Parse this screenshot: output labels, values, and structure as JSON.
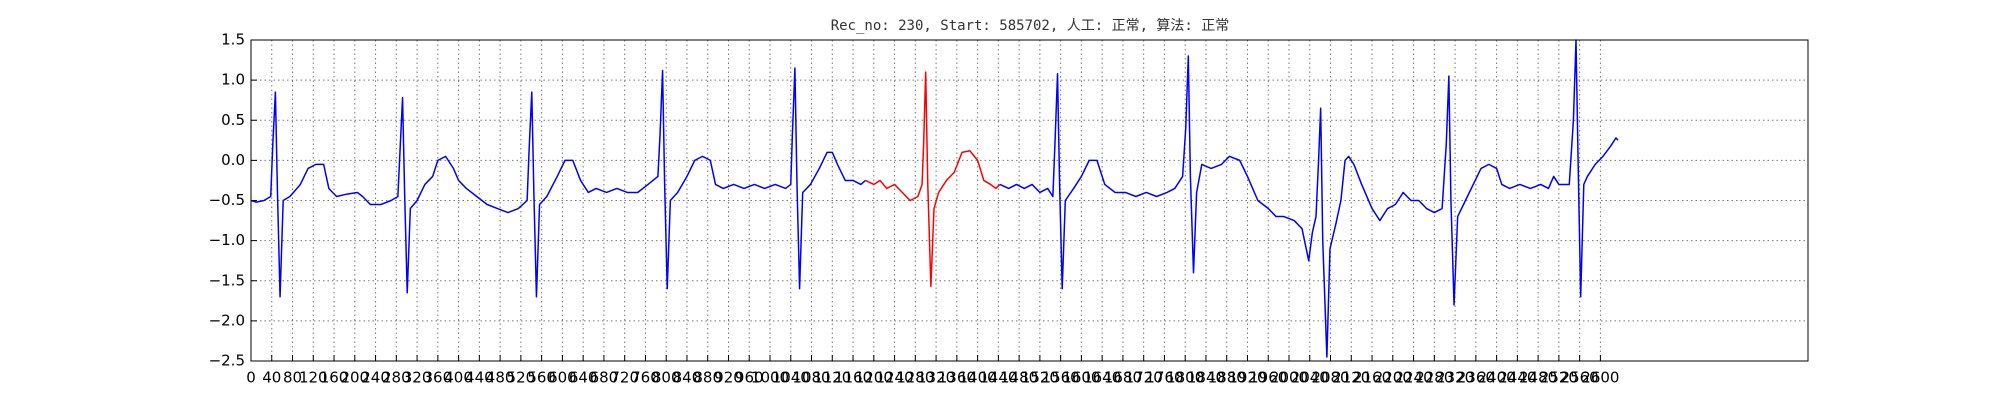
{
  "chart_data": {
    "type": "line",
    "title": "Rec_no: 230, Start: 585702, 人工: 正常, 算法: 正常",
    "xlim": [
      0,
      3000
    ],
    "xticks": [
      0,
      40,
      80,
      120,
      160,
      200,
      240,
      280,
      320,
      360,
      400,
      440,
      480,
      520,
      560,
      600,
      640,
      680,
      720,
      760,
      800,
      840,
      880,
      920,
      960,
      1000,
      1040,
      1080,
      1120,
      1160,
      1200,
      1240,
      1280,
      1320,
      1360,
      1400,
      1440,
      1480,
      1520,
      1560,
      1600,
      1640,
      1680,
      1720,
      1760,
      1800,
      1840,
      1880,
      1920,
      1960,
      2000,
      2040,
      2080,
      2120,
      2160,
      2200,
      2240,
      2280,
      2320,
      2360,
      2400,
      2440,
      2480,
      2520,
      2560,
      2600
    ],
    "ylim": [
      -2.5,
      1.5
    ],
    "yticks": [
      {
        "value": -2.5,
        "label": "−2.5"
      },
      {
        "value": -2.0,
        "label": "−2.0"
      },
      {
        "value": -1.5,
        "label": "−1.5"
      },
      {
        "value": -1.0,
        "label": "−1.0"
      },
      {
        "value": -0.5,
        "label": "−0.5"
      },
      {
        "value": 0,
        "label": "0.0"
      },
      {
        "value": 0.5,
        "label": "0.5"
      },
      {
        "value": 1.0,
        "label": "1.0"
      },
      {
        "value": 1.5,
        "label": "1.5"
      }
    ],
    "grid": true,
    "series": [
      {
        "color": "#0000ff",
        "x": [
          0,
          10,
          25,
          38,
          42,
          47,
          51,
          56,
          62,
          75,
          95,
          110,
          125,
          140,
          150,
          165,
          185,
          205,
          215,
          230,
          250,
          270,
          283,
          287,
          292,
          296,
          301,
          307,
          320,
          335,
          350,
          360,
          375,
          390,
          400,
          415,
          435,
          455,
          475,
          495,
          515,
          532,
          536,
          541,
          545,
          550,
          556,
          570,
          590,
          605,
          620,
          635,
          650,
          665,
          685,
          705,
          725,
          745,
          765,
          784,
          788,
          793,
          797,
          802,
          808,
          822,
          840,
          855,
          870,
          885,
          895,
          910,
          930,
          950,
          970,
          990,
          1010,
          1030,
          1040,
          1043,
          1048,
          1052,
          1057,
          1063,
          1078,
          1095,
          1110,
          1120,
          1130,
          1145,
          1160,
          1175,
          1184
        ],
        "values": [
          -0.5,
          -0.52,
          -0.5,
          -0.45,
          0.2,
          0.85,
          -0.4,
          -1.7,
          -0.5,
          -0.45,
          -0.3,
          -0.1,
          -0.05,
          -0.05,
          -0.35,
          -0.45,
          -0.42,
          -0.4,
          -0.45,
          -0.55,
          -0.55,
          -0.5,
          -0.45,
          0.1,
          0.78,
          -0.4,
          -1.65,
          -0.6,
          -0.5,
          -0.3,
          -0.2,
          0.0,
          0.05,
          -0.1,
          -0.25,
          -0.35,
          -0.45,
          -0.55,
          -0.6,
          -0.65,
          -0.6,
          -0.5,
          0.15,
          0.85,
          -0.4,
          -1.7,
          -0.55,
          -0.45,
          -0.2,
          0.0,
          0.0,
          -0.25,
          -0.4,
          -0.35,
          -0.4,
          -0.35,
          -0.4,
          -0.4,
          -0.3,
          -0.2,
          0.3,
          1.12,
          -0.3,
          -1.6,
          -0.5,
          -0.4,
          -0.2,
          0.0,
          0.05,
          0.0,
          -0.3,
          -0.35,
          -0.3,
          -0.35,
          -0.3,
          -0.35,
          -0.3,
          -0.35,
          -0.3,
          0.3,
          1.15,
          -0.3,
          -1.6,
          -0.4,
          -0.3,
          -0.1,
          0.1,
          0.1,
          -0.05,
          -0.25,
          -0.25,
          -0.3,
          -0.25
        ]
      },
      {
        "color": "#ff0000",
        "x": [
          1184,
          1200,
          1212,
          1225,
          1240,
          1255,
          1270,
          1285,
          1293,
          1296,
          1300,
          1304,
          1310,
          1316,
          1325,
          1340,
          1355,
          1370,
          1385,
          1400,
          1412,
          1425,
          1435,
          1443
        ],
        "values": [
          -0.25,
          -0.3,
          -0.25,
          -0.35,
          -0.3,
          -0.4,
          -0.5,
          -0.45,
          -0.3,
          0.2,
          1.1,
          -0.3,
          -1.57,
          -0.6,
          -0.4,
          -0.25,
          -0.15,
          0.1,
          0.12,
          0.0,
          -0.25,
          -0.3,
          -0.35,
          -0.3
        ]
      },
      {
        "color": "#0000ff",
        "x": [
          1443,
          1460,
          1475,
          1490,
          1505,
          1520,
          1535,
          1545,
          1549,
          1554,
          1558,
          1563,
          1569,
          1585,
          1600,
          1615,
          1630,
          1645,
          1665,
          1685,
          1705,
          1725,
          1745,
          1765,
          1780,
          1795,
          1801,
          1806,
          1810,
          1816,
          1822,
          1832,
          1850,
          1870,
          1885,
          1905,
          1920,
          1940,
          1960,
          1975,
          1990,
          2010,
          2025,
          2038,
          2045,
          2052,
          2057,
          2061,
          2065,
          2073,
          2079,
          2090,
          2100,
          2108,
          2115,
          2125,
          2140,
          2160,
          2175,
          2190,
          2205,
          2220,
          2235,
          2250,
          2265,
          2280,
          2295,
          2303,
          2308,
          2312,
          2318,
          2325,
          2340,
          2355,
          2370,
          2385,
          2400,
          2410,
          2425,
          2445,
          2465,
          2485,
          2500,
          2510,
          2520,
          2540,
          2548,
          2553,
          2557,
          2562,
          2568,
          2575,
          2590,
          2605,
          2620,
          2630,
          2634
        ],
        "values": [
          -0.3,
          -0.35,
          -0.3,
          -0.35,
          -0.3,
          -0.4,
          -0.35,
          -0.45,
          0.2,
          1.08,
          -0.3,
          -1.6,
          -0.5,
          -0.35,
          -0.2,
          0.0,
          0.0,
          -0.3,
          -0.4,
          -0.4,
          -0.45,
          -0.4,
          -0.45,
          -0.4,
          -0.35,
          -0.2,
          0.4,
          1.3,
          -0.2,
          -1.4,
          -0.4,
          -0.05,
          -0.1,
          -0.05,
          0.05,
          0.0,
          -0.2,
          -0.5,
          -0.6,
          -0.7,
          -0.7,
          -0.75,
          -0.85,
          -1.25,
          -0.9,
          -0.7,
          0.0,
          0.65,
          -1.0,
          -2.45,
          -1.1,
          -0.8,
          -0.5,
          0.0,
          0.05,
          -0.05,
          -0.3,
          -0.6,
          -0.75,
          -0.6,
          -0.55,
          -0.4,
          -0.5,
          -0.5,
          -0.6,
          -0.65,
          -0.6,
          0.2,
          1.05,
          -0.5,
          -1.8,
          -0.7,
          -0.5,
          -0.3,
          -0.1,
          -0.05,
          -0.1,
          -0.3,
          -0.35,
          -0.3,
          -0.35,
          -0.3,
          -0.35,
          -0.2,
          -0.3,
          -0.3,
          0.5,
          1.5,
          0.0,
          -1.7,
          -0.3,
          -0.2,
          -0.05,
          0.05,
          0.18,
          0.28,
          0.25
        ]
      }
    ]
  }
}
